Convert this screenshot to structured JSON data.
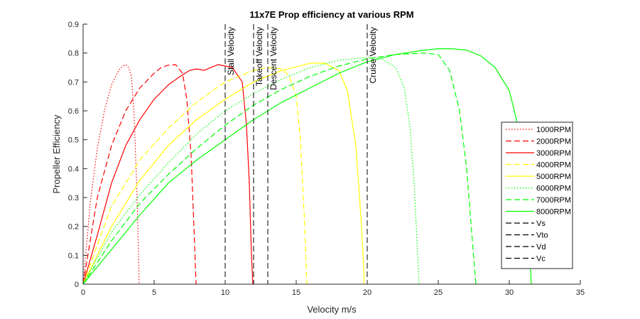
{
  "chart_data": {
    "type": "line",
    "title": "11x7E Prop efficiency at various RPM",
    "xlabel": "Velocity m/s",
    "ylabel": "Propeller Efficiency",
    "xlim": [
      0,
      35
    ],
    "ylim": [
      0,
      0.9
    ],
    "xticks": [
      0,
      5,
      10,
      15,
      20,
      25,
      30,
      35
    ],
    "xtick_labels": [
      "0",
      "5",
      "10",
      "15",
      "20",
      "25",
      "30",
      "35"
    ],
    "yticks": [
      0,
      0.1,
      0.2,
      0.3,
      0.4,
      0.5,
      0.6,
      0.7,
      0.8,
      0.9
    ],
    "ytick_labels": [
      "0",
      "0.1",
      "0.2",
      "0.3",
      "0.4",
      "0.5",
      "0.6",
      "0.7",
      "0.8",
      "0.9"
    ],
    "grid": false,
    "legend_position": "right",
    "series": [
      {
        "name": "1000RPM",
        "color": "#ff0000",
        "style": "dotted",
        "x": [
          0,
          0.5,
          1.0,
          1.5,
          2.0,
          2.5,
          2.8,
          3.0,
          3.2,
          3.4,
          3.6,
          3.8,
          3.95
        ],
        "y": [
          0,
          0.28,
          0.47,
          0.6,
          0.69,
          0.74,
          0.755,
          0.76,
          0.75,
          0.72,
          0.58,
          0.3,
          0
        ]
      },
      {
        "name": "2000RPM",
        "color": "#ff0000",
        "style": "dashed",
        "x": [
          0,
          1,
          2,
          3,
          4,
          5,
          5.5,
          6,
          6.5,
          7.0,
          7.3,
          7.6,
          7.8,
          7.95
        ],
        "y": [
          0,
          0.3,
          0.48,
          0.6,
          0.68,
          0.73,
          0.75,
          0.758,
          0.76,
          0.73,
          0.64,
          0.45,
          0.2,
          0
        ]
      },
      {
        "name": "3000RPM",
        "color": "#ff0000",
        "style": "solid",
        "x": [
          0,
          1,
          2,
          3,
          4,
          5,
          6,
          7,
          7.5,
          8,
          8.5,
          9.5,
          10.5,
          11.2,
          11.5,
          11.7,
          11.85,
          11.95
        ],
        "y": [
          0,
          0.17,
          0.35,
          0.48,
          0.57,
          0.64,
          0.69,
          0.725,
          0.74,
          0.745,
          0.74,
          0.76,
          0.75,
          0.7,
          0.55,
          0.35,
          0.1,
          0
        ]
      },
      {
        "name": "4000RPM",
        "color": "#ffff00",
        "style": "dashed",
        "x": [
          0,
          2,
          4,
          6,
          8,
          10,
          12,
          13,
          14,
          14.5,
          15,
          15.3,
          15.6,
          15.75
        ],
        "y": [
          0,
          0.27,
          0.43,
          0.54,
          0.63,
          0.7,
          0.74,
          0.75,
          0.745,
          0.72,
          0.65,
          0.5,
          0.2,
          0
        ]
      },
      {
        "name": "5000RPM",
        "color": "#ffff00",
        "style": "solid",
        "x": [
          0,
          2,
          4,
          6,
          8,
          10,
          12,
          14,
          16,
          17,
          18,
          18.6,
          19.2,
          19.6,
          19.8
        ],
        "y": [
          0,
          0.2,
          0.36,
          0.48,
          0.57,
          0.64,
          0.7,
          0.74,
          0.765,
          0.765,
          0.74,
          0.67,
          0.48,
          0.2,
          0
        ]
      },
      {
        "name": "6000RPM",
        "color": "#00ff00",
        "style": "dotted",
        "x": [
          0,
          2,
          4,
          6,
          8,
          10,
          12,
          14,
          16,
          18,
          20,
          21,
          22,
          22.6,
          23.0,
          23.3,
          23.5,
          23.65
        ],
        "y": [
          0,
          0.18,
          0.31,
          0.42,
          0.52,
          0.6,
          0.66,
          0.71,
          0.75,
          0.775,
          0.785,
          0.78,
          0.75,
          0.68,
          0.55,
          0.35,
          0.15,
          0
        ]
      },
      {
        "name": "7000RPM",
        "color": "#00ff00",
        "style": "dashed",
        "x": [
          0,
          2,
          4,
          6,
          8,
          10,
          12,
          14,
          16,
          18,
          20,
          22,
          24,
          25,
          25.8,
          26.5,
          27.0,
          27.4,
          27.65
        ],
        "y": [
          0,
          0.15,
          0.28,
          0.38,
          0.47,
          0.55,
          0.62,
          0.675,
          0.72,
          0.755,
          0.78,
          0.795,
          0.8,
          0.795,
          0.74,
          0.6,
          0.4,
          0.15,
          0
        ]
      },
      {
        "name": "8000RPM",
        "color": "#00ff00",
        "style": "solid",
        "x": [
          0,
          2,
          4,
          6,
          8,
          10,
          12,
          14,
          16,
          18,
          20,
          22,
          24,
          25,
          26,
          27,
          28,
          29,
          30,
          30.5,
          31.0,
          31.3,
          31.55
        ],
        "y": [
          0,
          0.12,
          0.24,
          0.35,
          0.43,
          0.5,
          0.57,
          0.63,
          0.68,
          0.73,
          0.77,
          0.795,
          0.81,
          0.815,
          0.815,
          0.81,
          0.79,
          0.75,
          0.67,
          0.57,
          0.4,
          0.2,
          0
        ]
      }
    ],
    "vlines": [
      {
        "name": "Vs",
        "x": 10,
        "label": "Stall Velocity"
      },
      {
        "name": "Vto",
        "x": 12,
        "label": "Takeoff Velocity"
      },
      {
        "name": "Vd",
        "x": 13,
        "label": "Descent Velocity"
      },
      {
        "name": "Vc",
        "x": 20,
        "label": "Cruise Velocity"
      }
    ],
    "vline_color": "#000000",
    "legend_entries": [
      "1000RPM",
      "2000RPM",
      "3000RPM",
      "4000RPM",
      "5000RPM",
      "6000RPM",
      "7000RPM",
      "8000RPM",
      "Vs",
      "Vto",
      "Vd",
      "Vc"
    ]
  }
}
